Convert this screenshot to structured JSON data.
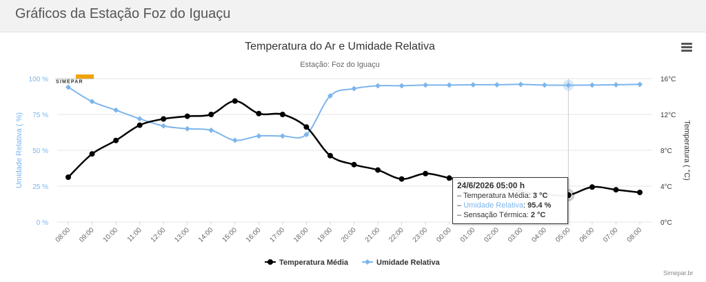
{
  "page": {
    "title": "Gráficos da Estação Foz do Iguaçu"
  },
  "logo_text": "SIMEPAR",
  "credit": "Simepar.br",
  "colors": {
    "temperature": "#000000",
    "humidity": "#7cb5ec",
    "grid": "#e6e6e6",
    "highlight": "#ccd6eb"
  },
  "tooltip": {
    "header": "24/6/2026 05:00 h",
    "temp_label": "Temperatura Média",
    "temp_value": "3 °C",
    "hum_label": "Umidade Relativa",
    "hum_value": "95.4 %",
    "feel_label": "Sensação Térmica",
    "feel_value": "2 °C"
  },
  "chart_data": {
    "type": "line",
    "title": "Temperatura do Ar e Umidade Relativa",
    "subtitle": "Estação: Foz do Iguaçu",
    "categories": [
      "08:00",
      "09:00",
      "10:00",
      "11:00",
      "12:00",
      "13:00",
      "14:00",
      "15:00",
      "16:00",
      "17:00",
      "18:00",
      "19:00",
      "20:00",
      "21:00",
      "22:00",
      "23:00",
      "00:00",
      "01:00",
      "02:00",
      "03:00",
      "04:00",
      "05:00",
      "06:00",
      "07:00",
      "08:00"
    ],
    "y_left": {
      "label": "Umidade Relativa ( %)",
      "range": [
        0,
        100
      ],
      "ticks": [
        0,
        25,
        50,
        75,
        100
      ],
      "tick_labels": [
        "0 %",
        "25 %",
        "50 %",
        "75 %",
        "100 %"
      ]
    },
    "y_right": {
      "label": "Temperatura ( °C)",
      "range": [
        0,
        16
      ],
      "ticks": [
        0,
        4,
        8,
        12,
        16
      ],
      "tick_labels": [
        "0°C",
        "4°C",
        "8°C",
        "12°C",
        "16°C"
      ]
    },
    "series": [
      {
        "name": "Temperatura Média",
        "axis": "right",
        "color": "#000000",
        "values": [
          5.0,
          7.6,
          9.1,
          10.8,
          11.5,
          11.8,
          12.0,
          13.5,
          12.1,
          12.0,
          10.6,
          7.4,
          6.4,
          5.8,
          4.8,
          5.4,
          4.9,
          4.3,
          3.9,
          3.4,
          3.1,
          3.0,
          3.9,
          3.6,
          3.3
        ]
      },
      {
        "name": "Umidade Relativa",
        "axis": "left",
        "color": "#7cb5ec",
        "values": [
          94,
          84,
          78,
          72,
          67,
          65,
          64,
          57,
          60,
          60,
          61,
          88,
          93,
          95,
          95,
          95.5,
          95.5,
          95.7,
          95.7,
          96,
          95.5,
          95.4,
          95.5,
          95.7,
          96
        ]
      }
    ],
    "highlight_category": "05:00",
    "grid": true,
    "legend": "bottom-center"
  }
}
